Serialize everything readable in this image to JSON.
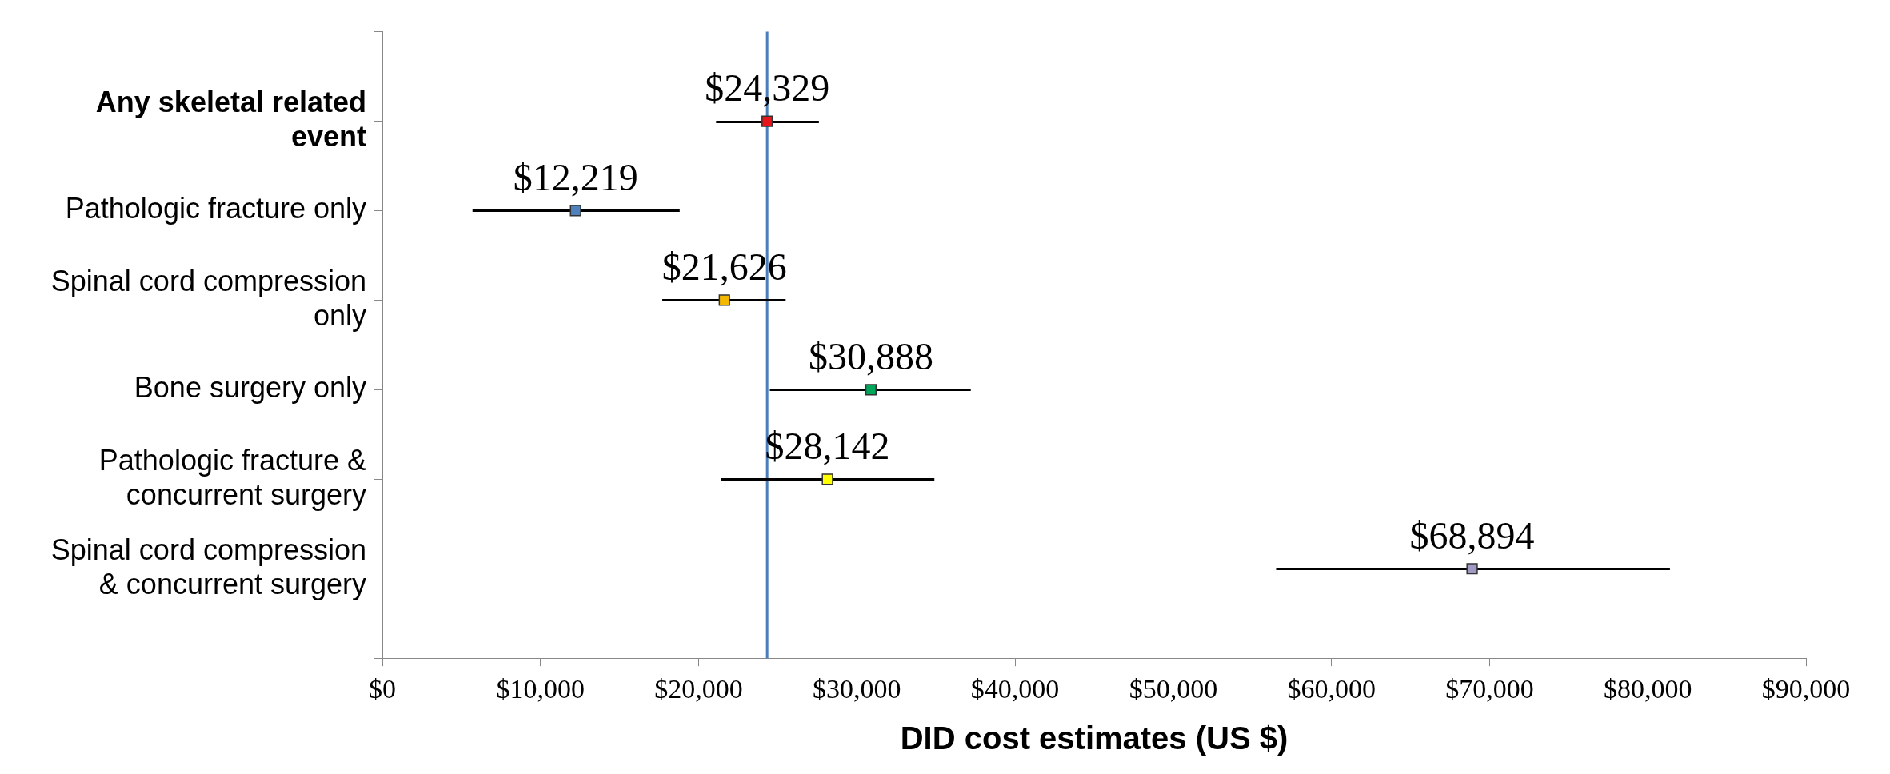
{
  "chart_data": {
    "type": "scatter",
    "orientation": "horizontal",
    "xlabel": "DID cost estimates (US $)",
    "categories": [
      null,
      "Any skeletal related event",
      "Pathologic fracture only",
      "Spinal cord compression only",
      "Bone surgery only",
      "Pathologic fracture & concurrent surgery",
      "Spinal cord compression & concurrent surgery",
      null
    ],
    "values": [
      null,
      24329,
      12219,
      21626,
      30888,
      28142,
      68894,
      null
    ],
    "colors": [
      "#000000",
      "#e8141c",
      "#4f81bd",
      "#f5b800",
      "#00a65a",
      "#ffff00",
      "#a29ac4",
      "#000000"
    ],
    "errors": [
      null,
      [
        21100,
        27600
      ],
      [
        5700,
        18800
      ],
      [
        17700,
        25500
      ],
      [
        24500,
        37200
      ],
      [
        21400,
        34900
      ],
      [
        56500,
        81400
      ],
      null
    ],
    "value_labels": [
      null,
      "$24,329",
      "$12,219",
      "$21,626",
      "$30,888",
      "$28,142",
      "$68,894",
      null
    ],
    "xlim": [
      0,
      90000
    ],
    "xticks": [
      {
        "value": 0,
        "label": "$0"
      },
      {
        "value": 10000,
        "label": "$10,000"
      },
      {
        "value": 20000,
        "label": "$20,000"
      },
      {
        "value": 30000,
        "label": "$30,000"
      },
      {
        "value": 40000,
        "label": "$40,000"
      },
      {
        "value": 50000,
        "label": "$50,000"
      },
      {
        "value": 60000,
        "label": "$60,000"
      },
      {
        "value": 70000,
        "label": "$70,000"
      },
      {
        "value": 80000,
        "label": "$80,000"
      },
      {
        "value": 90000,
        "label": "$90,000"
      }
    ],
    "ref_lines": [
      {
        "axis": "x",
        "value": 24329,
        "color": "#4a7ebb"
      }
    ],
    "marker": "square",
    "grid": false,
    "legend": false
  }
}
